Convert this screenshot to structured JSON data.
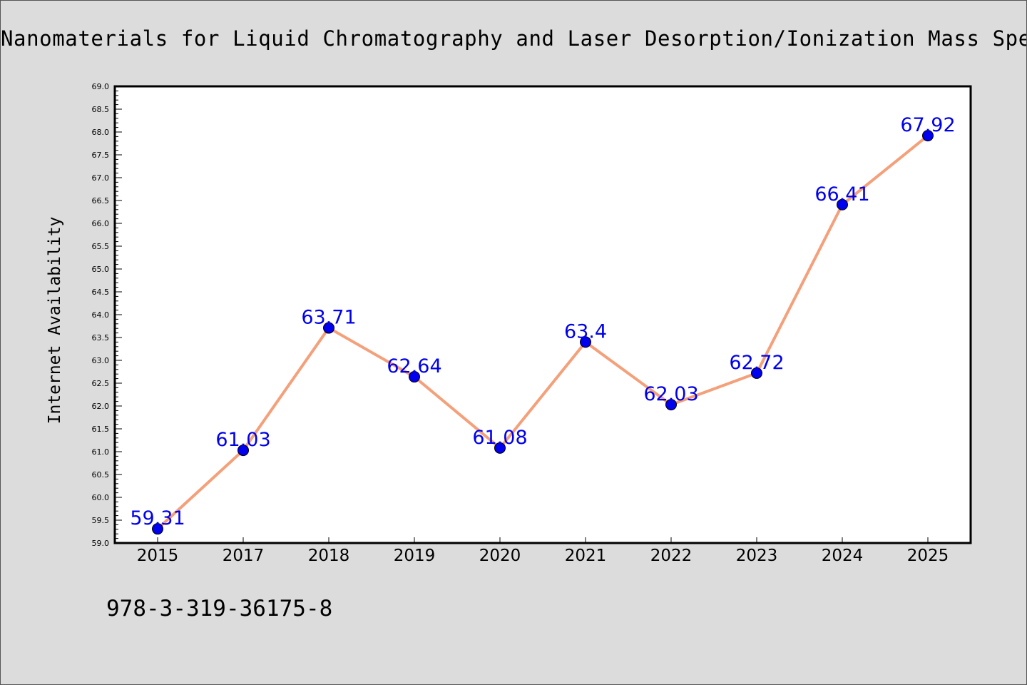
{
  "chart_data": {
    "type": "line",
    "title": "Nanomaterials for Liquid Chromatography and Laser Desorption/Ionization Mass Spectrometry",
    "xlabel": "",
    "ylabel": "Internet Availability",
    "categories": [
      "2015",
      "2017",
      "2018",
      "2019",
      "2020",
      "2021",
      "2022",
      "2023",
      "2024",
      "2025"
    ],
    "series": [
      {
        "values": [
          59.31,
          61.03,
          63.71,
          62.64,
          61.08,
          63.4,
          62.03,
          62.72,
          66.41,
          67.92
        ],
        "labels": [
          "59.31",
          "61.03",
          "63.71",
          "62.64",
          "61.08",
          "63.4",
          "62.03",
          "62.72",
          "66.41",
          "67.92"
        ]
      }
    ],
    "ylim": [
      59.0,
      69.0
    ],
    "yticks": [
      "59.0",
      "59.5",
      "60.0",
      "60.5",
      "61.0",
      "61.5",
      "62.0",
      "62.5",
      "63.0",
      "63.5",
      "64.0",
      "64.5",
      "65.0",
      "65.5",
      "66.0",
      "66.5",
      "67.0",
      "67.5",
      "68.0",
      "68.5",
      "69.0"
    ],
    "grid": false,
    "line_color": "#f4a07a",
    "marker_color": "#0000ee",
    "label_color": "#0000ee",
    "background": "#dcdcdc",
    "plot_background": "#ffffff"
  },
  "footer": {
    "isbn": "978-3-319-36175-8"
  }
}
